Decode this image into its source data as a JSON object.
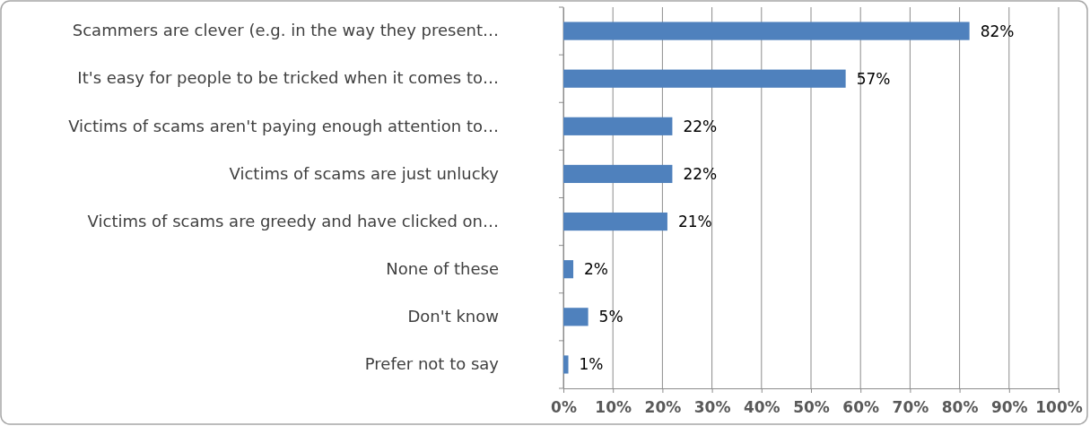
{
  "chart_data": {
    "type": "bar",
    "orientation": "horizontal",
    "categories": [
      "Scammers are clever (e.g. in the way they present…",
      "It's easy for people to be tricked when it comes to…",
      "Victims of scams aren't paying enough attention to…",
      "Victims of scams are just unlucky",
      "Victims of scams are greedy and have clicked on…",
      "None of these",
      "Don't know",
      "Prefer not to say"
    ],
    "values": [
      82,
      57,
      22,
      22,
      21,
      2,
      5,
      1
    ],
    "value_labels": [
      "82%",
      "57%",
      "22%",
      "22%",
      "21%",
      "2%",
      "5%",
      "1%"
    ],
    "color": "#4f81bd",
    "xlim": [
      0,
      100
    ],
    "xticks": [
      {
        "value": 0,
        "label": "0%"
      },
      {
        "value": 10,
        "label": "10%"
      },
      {
        "value": 20,
        "label": "20%"
      },
      {
        "value": 30,
        "label": "30%"
      },
      {
        "value": 40,
        "label": "40%"
      },
      {
        "value": 50,
        "label": "50%"
      },
      {
        "value": 60,
        "label": "60%"
      },
      {
        "value": 70,
        "label": "70%"
      },
      {
        "value": 80,
        "label": "80%"
      },
      {
        "value": 90,
        "label": "90%"
      },
      {
        "value": 100,
        "label": "100%"
      }
    ],
    "grid": "x"
  }
}
